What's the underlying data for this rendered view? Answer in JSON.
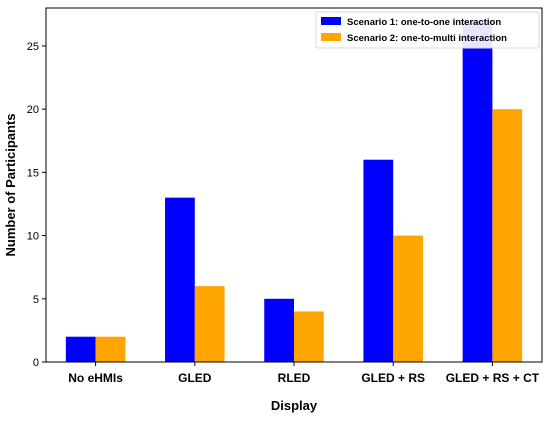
{
  "chart_data": {
    "type": "bar",
    "title": "",
    "xlabel": "Display",
    "ylabel": "Number of Participants",
    "categories": [
      "No eHMIs",
      "GLED",
      "RLED",
      "GLED + RS",
      "GLED + RS + CT"
    ],
    "series": [
      {
        "name": "Scenario 1: one-to-one interaction",
        "color": "#0000ff",
        "values": [
          2,
          13,
          5,
          16,
          27
        ]
      },
      {
        "name": "Scenario 2: one-to-multi interaction",
        "color": "#ffa500",
        "values": [
          2,
          6,
          4,
          10,
          20
        ]
      }
    ],
    "ylim": [
      0,
      28
    ],
    "yticks": [
      0,
      5,
      10,
      15,
      20,
      25
    ],
    "grid": false,
    "legend_position": "top-right"
  }
}
